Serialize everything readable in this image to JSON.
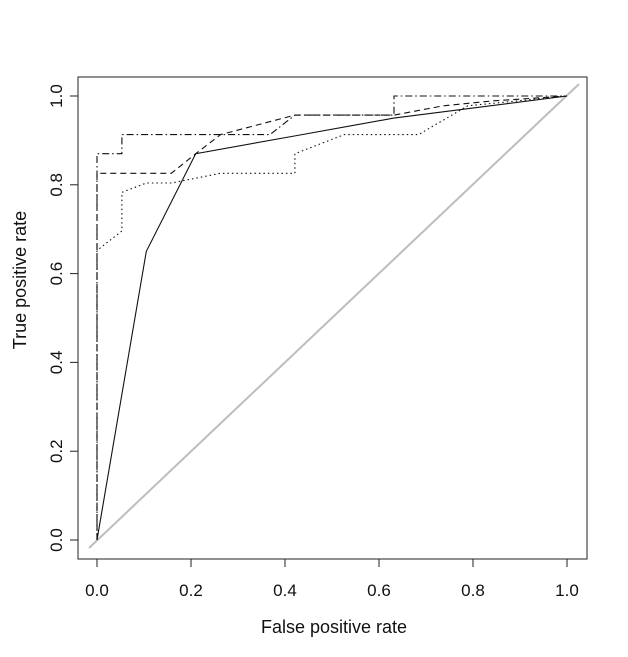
{
  "chart_data": {
    "type": "line",
    "title": "",
    "xlabel": "False positive rate",
    "ylabel": "True positive rate",
    "xlim": [
      0,
      1
    ],
    "ylim": [
      0,
      1
    ],
    "xticks": [
      "0.0",
      "0.2",
      "0.4",
      "0.6",
      "0.8",
      "1.0"
    ],
    "yticks": [
      "0.0",
      "0.2",
      "0.4",
      "0.6",
      "0.8",
      "1.0"
    ],
    "grid": false,
    "legend": "none",
    "reference_line": {
      "x": [
        0,
        1
      ],
      "y": [
        0,
        1
      ],
      "color": "#bdbdbd"
    },
    "series": [
      {
        "style": "solid",
        "x": [
          0,
          0.105,
          0.21,
          0.42,
          0.63,
          1.0
        ],
        "y": [
          0,
          0.65,
          0.87,
          0.91,
          0.95,
          1.0
        ]
      },
      {
        "style": "dashed",
        "x": [
          0,
          0,
          0.158,
          0.21,
          0.263,
          0.421,
          0.526,
          0.632,
          0.737,
          0.842,
          1.0
        ],
        "y": [
          0,
          0.826,
          0.826,
          0.87,
          0.913,
          0.957,
          0.957,
          0.957,
          0.978,
          0.989,
          1.0
        ]
      },
      {
        "style": "dotted",
        "x": [
          0,
          0,
          0.053,
          0.053,
          0.105,
          0.158,
          0.263,
          0.421,
          0.421,
          0.526,
          0.684,
          0.789,
          1.0
        ],
        "y": [
          0,
          0.652,
          0.696,
          0.783,
          0.804,
          0.804,
          0.826,
          0.826,
          0.87,
          0.913,
          0.913,
          0.978,
          1.0
        ]
      },
      {
        "style": "dotdash",
        "x": [
          0,
          0,
          0.053,
          0.053,
          0.368,
          0.421,
          0.632,
          0.632,
          1.0
        ],
        "y": [
          0,
          0.87,
          0.87,
          0.913,
          0.913,
          0.957,
          0.957,
          1.0,
          1.0
        ]
      }
    ]
  }
}
